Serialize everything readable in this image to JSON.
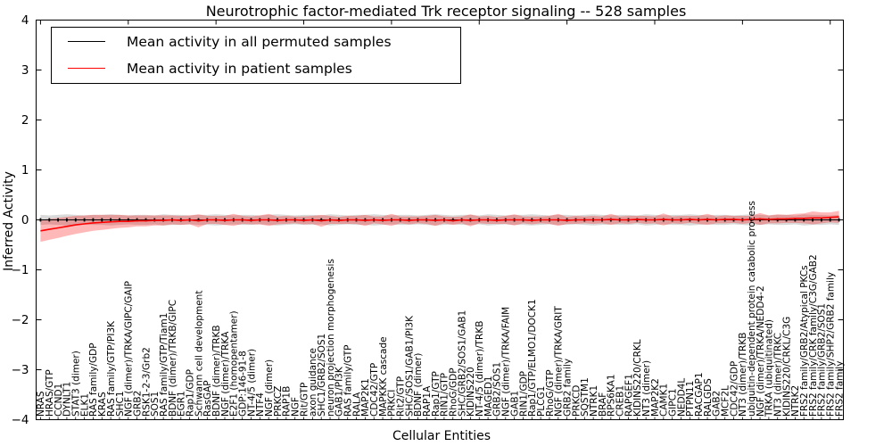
{
  "title": "Neurotrophic factor-mediated Trk receptor signaling -- 528 samples",
  "axes": {
    "xlabel": "Cellular Entities",
    "ylabel": "Inferred Activity",
    "yticks": [
      "4",
      "3",
      "2",
      "1",
      "0",
      "−1",
      "−2",
      "−3",
      "−4"
    ],
    "ylim": [
      -4,
      4
    ]
  },
  "legend": {
    "items": [
      {
        "label": "Mean activity in all permuted samples",
        "color": "#000000"
      },
      {
        "label": "Mean activity in patient samples",
        "color": "#ff0000"
      }
    ]
  },
  "chart_data": {
    "type": "line",
    "title": "Neurotrophic factor-mediated Trk receptor signaling -- 528 samples",
    "xlabel": "Cellular Entities",
    "ylabel": "Inferred Activity",
    "ylim": [
      -4,
      4
    ],
    "grid": false,
    "legend_position": "upper left",
    "categories": [
      "NRAS",
      "HRAS/GTP",
      "CCND1",
      "DYNLT1",
      "STAT3 (dimer)",
      "ELK1",
      "RAS family/GDP",
      "KRAS",
      "RAS family/GTP/PI3K",
      "SHC1",
      "NGF (dimer)/TRKA/GIPC/GAIP",
      "GRB2",
      "RSK1-2-3/Grb2",
      "SOS1",
      "RAS family/GTP/Tiam1",
      "BDNF (dimer)/TRKB/GIPC",
      "EGR1",
      "Rap1/GDP",
      "Schwann cell development",
      "RasGAP",
      "BDNF (dimer)/TRKB",
      "NGF (dimer)/TRKA",
      "E2F1 (homopentamer)",
      "GDP:146-91-8",
      "NT-4/5 (dimer)",
      "NTF4",
      "NGF (dimer)",
      "PRKCZ",
      "RAP1B",
      "NGF",
      "Rit/GTP",
      "axon guidance",
      "SHC1/GRB2/SOS1",
      "neuron projection morphogenesis",
      "GAB1/PI3K",
      "RAS family/GTP",
      "RALA",
      "MAP2K1",
      "CDC42/GTP",
      "MAPKKK cascade",
      "PRKCI",
      "Rit2/GTP",
      "SHC/SOS1/GAB1/PI3K",
      "BDNF (dimer)",
      "RAP1A",
      "Rap1/GTP",
      "RIN1/GTP",
      "RhoG/GDP",
      "SHC/GRB2/SOS1/GAB1",
      "KIDINS220",
      "NT-4/5 (dimer)/TRKB",
      "MAGED1",
      "GRB2/SOS1",
      "NGF (dimer)/TRKA/FAIM",
      "GAB1",
      "RIN1/GDP",
      "Rap1/GTP/ELMO1/DOCK1",
      "PLCG1",
      "RhoG/GTP",
      "NGF (dimer)/TRKA/GRIT",
      "GRB2 family",
      "PRKCD",
      "SQSTM1",
      "NTRK1",
      "BRAF",
      "RPS6KA1",
      "CREB1",
      "RAPGEF1",
      "KIDINS220/CRKL",
      "NT3 (dimer)",
      "MAP2K2",
      "CAMK1",
      "GIPC1",
      "NEDD4L",
      "PTPN11",
      "RACGAP1",
      "RALGDS",
      "GAB2",
      "MCF2L",
      "CDC42/GDP",
      "NT3 (dimer)/TRKB",
      "ubiquitin-dependent protein catabolic process",
      "NGF (dimer)/TRKA/NEDD4-2",
      "TRKA (ubiquitinated)",
      "NT3 (dimer)/TRKC",
      "KIDINS220/CRKL/C3G",
      "NTRK2",
      "FRS2 family/GRB2/Atypical PKCs",
      "FRS2 family/CRK family/C3G/GAB2",
      "FRS2 family/GRB2/SOS1",
      "FRS2 family/SHP2/GRB2 family",
      "FRS2 family"
    ],
    "series": [
      {
        "name": "Mean activity in all permuted samples",
        "color": "#000000",
        "constant_value": 0,
        "band_halfwidth": [
          0.1,
          0.09,
          0.1,
          0.11,
          0.1,
          0.09,
          0.1,
          0.1,
          0.11,
          0.1,
          0.09,
          0.1,
          0.1,
          0.09,
          0.11,
          0.1,
          0.1,
          0.09,
          0.1,
          0.1,
          0.11,
          0.1,
          0.09,
          0.1,
          0.1,
          0.09,
          0.1,
          0.11,
          0.1,
          0.09,
          0.1,
          0.1,
          0.09,
          0.11,
          0.1,
          0.09,
          0.1,
          0.1,
          0.11,
          0.1,
          0.09,
          0.1,
          0.1,
          0.09,
          0.1,
          0.11,
          0.1,
          0.09,
          0.1,
          0.1,
          0.09,
          0.11,
          0.1,
          0.09,
          0.1,
          0.1,
          0.11,
          0.1,
          0.09,
          0.1,
          0.1,
          0.09,
          0.1,
          0.11,
          0.1,
          0.09,
          0.1,
          0.1,
          0.09,
          0.11,
          0.1,
          0.09,
          0.1,
          0.1,
          0.11,
          0.1,
          0.09,
          0.1,
          0.1,
          0.09,
          0.1,
          0.11,
          0.1,
          0.09,
          0.1,
          0.1,
          0.09,
          0.11,
          0.1,
          0.1,
          0.09,
          0.1
        ]
      },
      {
        "name": "Mean activity in patient samples",
        "color": "#ff0000",
        "values": [
          -0.22,
          -0.19,
          -0.16,
          -0.13,
          -0.1,
          -0.08,
          -0.06,
          -0.05,
          -0.04,
          -0.03,
          -0.03,
          -0.02,
          -0.02,
          -0.01,
          -0.01,
          0,
          -0.01,
          0,
          -0.02,
          0,
          0,
          -0.01,
          0,
          0,
          -0.01,
          0,
          0,
          -0.01,
          0,
          0,
          -0.01,
          0,
          -0.02,
          0,
          -0.01,
          0,
          0,
          -0.01,
          0,
          -0.01,
          0,
          0,
          -0.01,
          0,
          0,
          -0.01,
          0,
          -0.02,
          0,
          -0.01,
          0,
          0,
          -0.01,
          0,
          0,
          0,
          -0.01,
          0,
          0,
          0,
          -0.01,
          0,
          0,
          0,
          0,
          0.01,
          0,
          0,
          0.01,
          0,
          0,
          0.01,
          0,
          0,
          0.01,
          0,
          0.01,
          0,
          0.01,
          0.01,
          0,
          0.01,
          0.02,
          0.01,
          0.02,
          0.02,
          0.03,
          0.03,
          0.04,
          0.04,
          0.05,
          0.06
        ],
        "band_halfwidth": [
          0.22,
          0.21,
          0.2,
          0.19,
          0.18,
          0.17,
          0.16,
          0.15,
          0.14,
          0.13,
          0.12,
          0.11,
          0.11,
          0.1,
          0.1,
          0.09,
          0.09,
          0.09,
          0.13,
          0.08,
          0.08,
          0.09,
          0.12,
          0.08,
          0.08,
          0.09,
          0.12,
          0.08,
          0.08,
          0.07,
          0.08,
          0.08,
          0.12,
          0.08,
          0.07,
          0.08,
          0.08,
          0.11,
          0.07,
          0.08,
          0.12,
          0.07,
          0.08,
          0.07,
          0.08,
          0.11,
          0.07,
          0.08,
          0.07,
          0.12,
          0.07,
          0.08,
          0.07,
          0.08,
          0.11,
          0.07,
          0.08,
          0.07,
          0.08,
          0.12,
          0.07,
          0.08,
          0.07,
          0.08,
          0.07,
          0.11,
          0.07,
          0.08,
          0.07,
          0.08,
          0.07,
          0.12,
          0.07,
          0.08,
          0.07,
          0.08,
          0.11,
          0.07,
          0.08,
          0.07,
          0.08,
          0.07,
          0.12,
          0.08,
          0.09,
          0.08,
          0.09,
          0.1,
          0.13,
          0.11,
          0.1,
          0.12
        ]
      }
    ]
  }
}
